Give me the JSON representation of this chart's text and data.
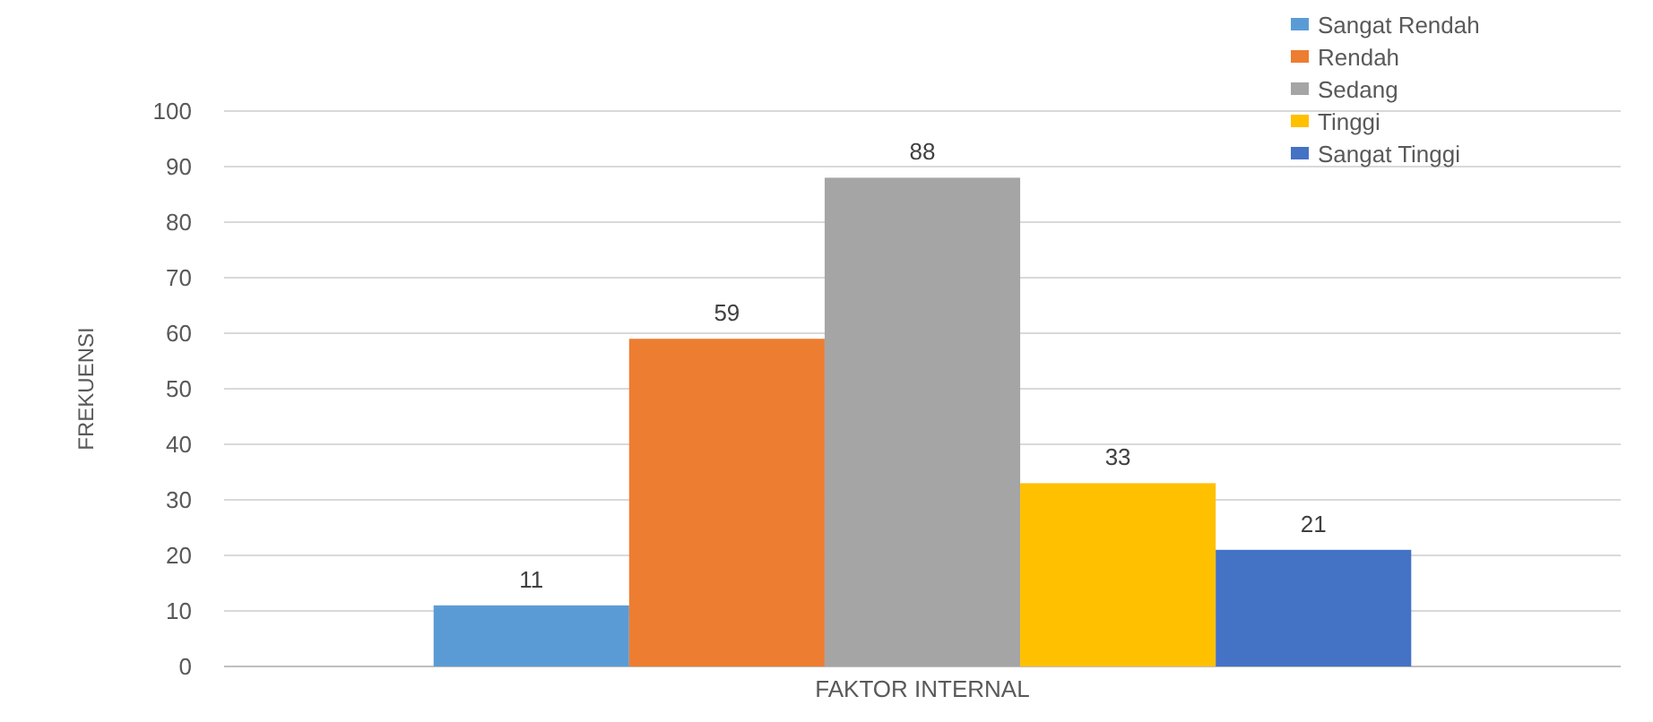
{
  "chart_data": {
    "type": "bar",
    "categories": [
      "FAKTOR INTERNAL"
    ],
    "ylabel": "FREKUENSI",
    "series": [
      {
        "name": "Sangat Rendah",
        "color": "#5b9bd5",
        "values": [
          11
        ]
      },
      {
        "name": "Rendah",
        "color": "#ed7d31",
        "values": [
          59
        ]
      },
      {
        "name": "Sedang",
        "color": "#a5a5a5",
        "values": [
          88
        ]
      },
      {
        "name": "Tinggi",
        "color": "#ffc000",
        "values": [
          33
        ]
      },
      {
        "name": "Sangat Tinggi",
        "color": "#4472c4",
        "values": [
          21
        ]
      }
    ],
    "ylim": [
      0,
      100
    ],
    "yticks": [
      0,
      10,
      20,
      30,
      40,
      50,
      60,
      70,
      80,
      90,
      100
    ],
    "grid": "y",
    "legend": "top right",
    "data_labels": true
  }
}
